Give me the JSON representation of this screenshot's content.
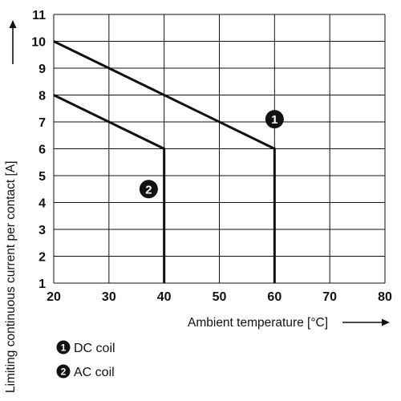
{
  "chart_data": {
    "type": "line",
    "xlabel": "Ambient temperature [°C]",
    "ylabel": "Limiting continuous current per contact [A]",
    "xlim": [
      20,
      80
    ],
    "ylim": [
      1,
      11
    ],
    "x_ticks": [
      20,
      30,
      40,
      50,
      60,
      70,
      80
    ],
    "y_ticks": [
      1,
      2,
      3,
      4,
      5,
      6,
      7,
      8,
      9,
      10,
      11
    ],
    "grid": true,
    "series": [
      {
        "name": "DC coil",
        "marker": "1",
        "x": [
          20,
          60,
          60
        ],
        "y": [
          10,
          6,
          1
        ]
      },
      {
        "name": "AC coil",
        "marker": "2",
        "x": [
          20,
          40,
          40
        ],
        "y": [
          8,
          6,
          1
        ]
      }
    ],
    "series_markers": [
      {
        "label": "1",
        "x": 60,
        "y": 7.1
      },
      {
        "label": "2",
        "x": 37.2,
        "y": 4.5
      }
    ],
    "legend_position": "bottom-left",
    "colors": {
      "line": "#111111",
      "grid": "#111111",
      "marker_fill": "#111111",
      "marker_text": "#ffffff"
    }
  }
}
